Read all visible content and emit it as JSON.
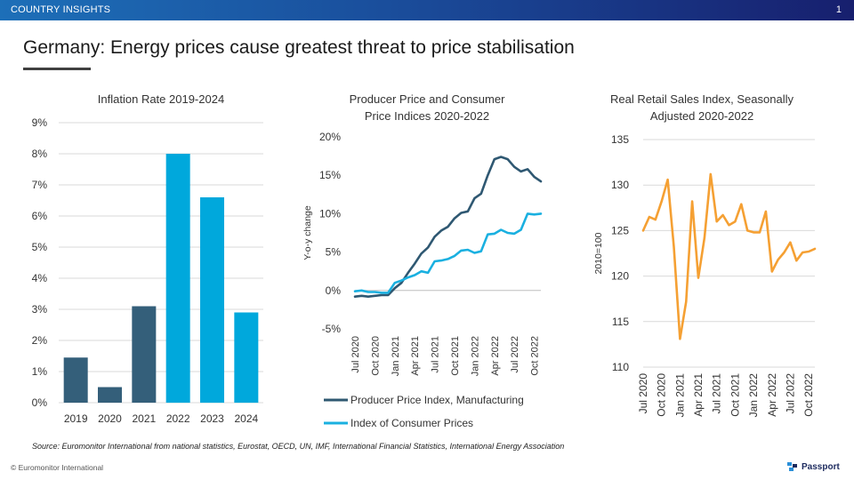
{
  "header": {
    "section_label": "COUNTRY INSIGHTS",
    "page_number": "1"
  },
  "slide": {
    "title": "Germany: Energy prices cause greatest threat to price stabilisation"
  },
  "footer": {
    "source": "Source: Euromonitor International from national statistics, Eurostat, OECD, UN, IMF, International Financial Statistics, International Energy Association",
    "copyright": "© Euromonitor International",
    "brand": "Passport"
  },
  "colors": {
    "dark_bar": "#345f7a",
    "light_bar": "#00a8dc",
    "ppi_line": "#2f5872",
    "cpi_line": "#1ab0e0",
    "retail_line": "#f5a033",
    "grid": "#d9d9d9"
  },
  "chart_data": [
    {
      "type": "bar",
      "title": "Inflation Rate 2019-2024",
      "categories": [
        "2019",
        "2020",
        "2021",
        "2022",
        "2023",
        "2024"
      ],
      "values": [
        1.45,
        0.5,
        3.1,
        8.0,
        6.6,
        2.9
      ],
      "highlight": [
        false,
        false,
        false,
        true,
        true,
        true
      ],
      "ylim": [
        0,
        9
      ],
      "yticks": [
        "0%",
        "1%",
        "2%",
        "3%",
        "4%",
        "5%",
        "6%",
        "7%",
        "8%",
        "9%"
      ],
      "grid": true
    },
    {
      "type": "line",
      "title_lines": [
        "Producer  Price and Consumer",
        "Price Indices 2020-2022"
      ],
      "ylabel": "Y-o-y change",
      "ylim": [
        -5,
        20
      ],
      "yticks": [
        "-5%",
        "0%",
        "5%",
        "10%",
        "15%",
        "20%"
      ],
      "xtick_labels": [
        "Jul 2020",
        "Oct 2020",
        "Jan 2021",
        "Apr 2021",
        "Jul 2021",
        "Oct 2021",
        "Jan 2022",
        "Apr 2022",
        "Jul 2022",
        "Oct 2022"
      ],
      "xtick_index": [
        0,
        3,
        6,
        9,
        12,
        15,
        18,
        21,
        24,
        27
      ],
      "series": [
        {
          "name": "Producer Price Index, Manufacturing",
          "values": [
            -0.8,
            -0.7,
            -0.8,
            -0.7,
            -0.6,
            -0.6,
            0.3,
            1.0,
            2.3,
            3.5,
            4.8,
            5.6,
            7.0,
            7.8,
            8.3,
            9.4,
            10.1,
            10.3,
            12.0,
            12.6,
            15.0,
            17.1,
            17.4,
            17.1,
            16.1,
            15.5,
            15.8,
            14.8,
            14.2
          ]
        },
        {
          "name": "Index of Consumer Prices",
          "values": [
            -0.1,
            0.0,
            -0.2,
            -0.2,
            -0.3,
            -0.3,
            1.0,
            1.3,
            1.7,
            2.0,
            2.5,
            2.3,
            3.8,
            3.9,
            4.1,
            4.5,
            5.2,
            5.3,
            4.9,
            5.1,
            7.3,
            7.4,
            7.9,
            7.5,
            7.4,
            7.9,
            10.0,
            9.9,
            10.0
          ]
        }
      ]
    },
    {
      "type": "line",
      "title_lines": [
        "Real Retail Sales Index, Seasonally",
        "Adjusted 2020-2022"
      ],
      "ylabel": "2010=100",
      "ylim": [
        110,
        135
      ],
      "yticks": [
        "110",
        "115",
        "120",
        "125",
        "130",
        "135"
      ],
      "xtick_labels": [
        "Jul 2020",
        "Oct 2020",
        "Jan 2021",
        "Apr 2021",
        "Jul 2021",
        "Oct 2021",
        "Jan 2022",
        "Apr 2022",
        "Jul 2022",
        "Oct 2022"
      ],
      "xtick_index": [
        0,
        3,
        6,
        9,
        12,
        15,
        18,
        21,
        24,
        27
      ],
      "series": [
        {
          "name": "Real Retail Sales Index",
          "values": [
            125.0,
            126.5,
            126.2,
            128.2,
            130.6,
            123.2,
            113.1,
            117.2,
            128.2,
            119.8,
            124.2,
            131.2,
            126.0,
            126.7,
            125.6,
            126.0,
            127.9,
            125.0,
            124.8,
            124.8,
            127.1,
            120.5,
            121.8,
            122.6,
            123.7,
            121.7,
            122.6,
            122.7,
            123.0
          ]
        }
      ]
    }
  ]
}
